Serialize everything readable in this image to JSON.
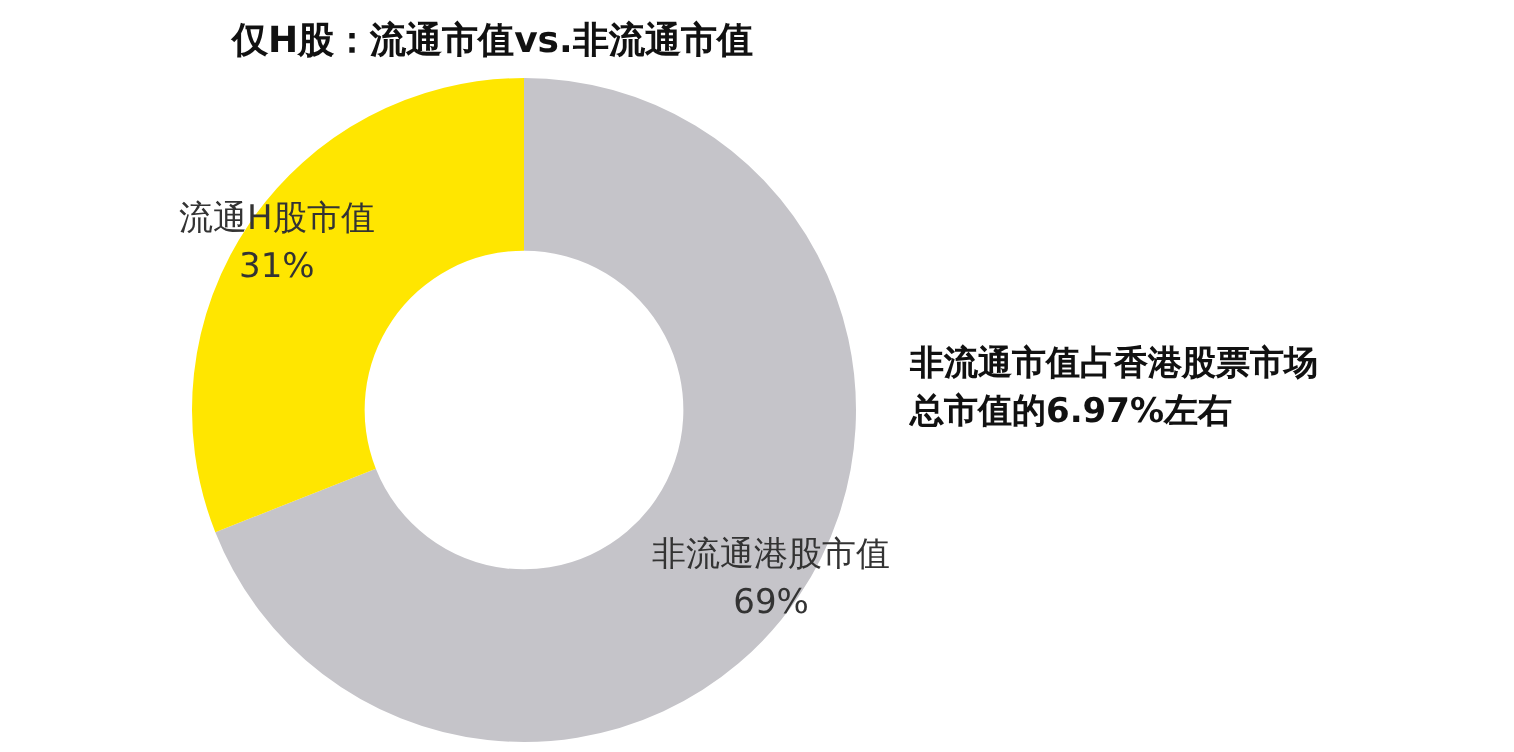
{
  "chart_data": {
    "type": "donut",
    "title": "仅H股：流通市值vs.非流通市值",
    "categories": [
      "非流通港股市值",
      "流通H股市值"
    ],
    "values": [
      69,
      31
    ],
    "colors": [
      "#c5c4c9",
      "#ffe600"
    ],
    "value_labels": [
      "69%",
      "31%"
    ],
    "legend": false,
    "annotations": [
      "非流通市值占香港股票市场总市值的6.97%左右"
    ]
  }
}
